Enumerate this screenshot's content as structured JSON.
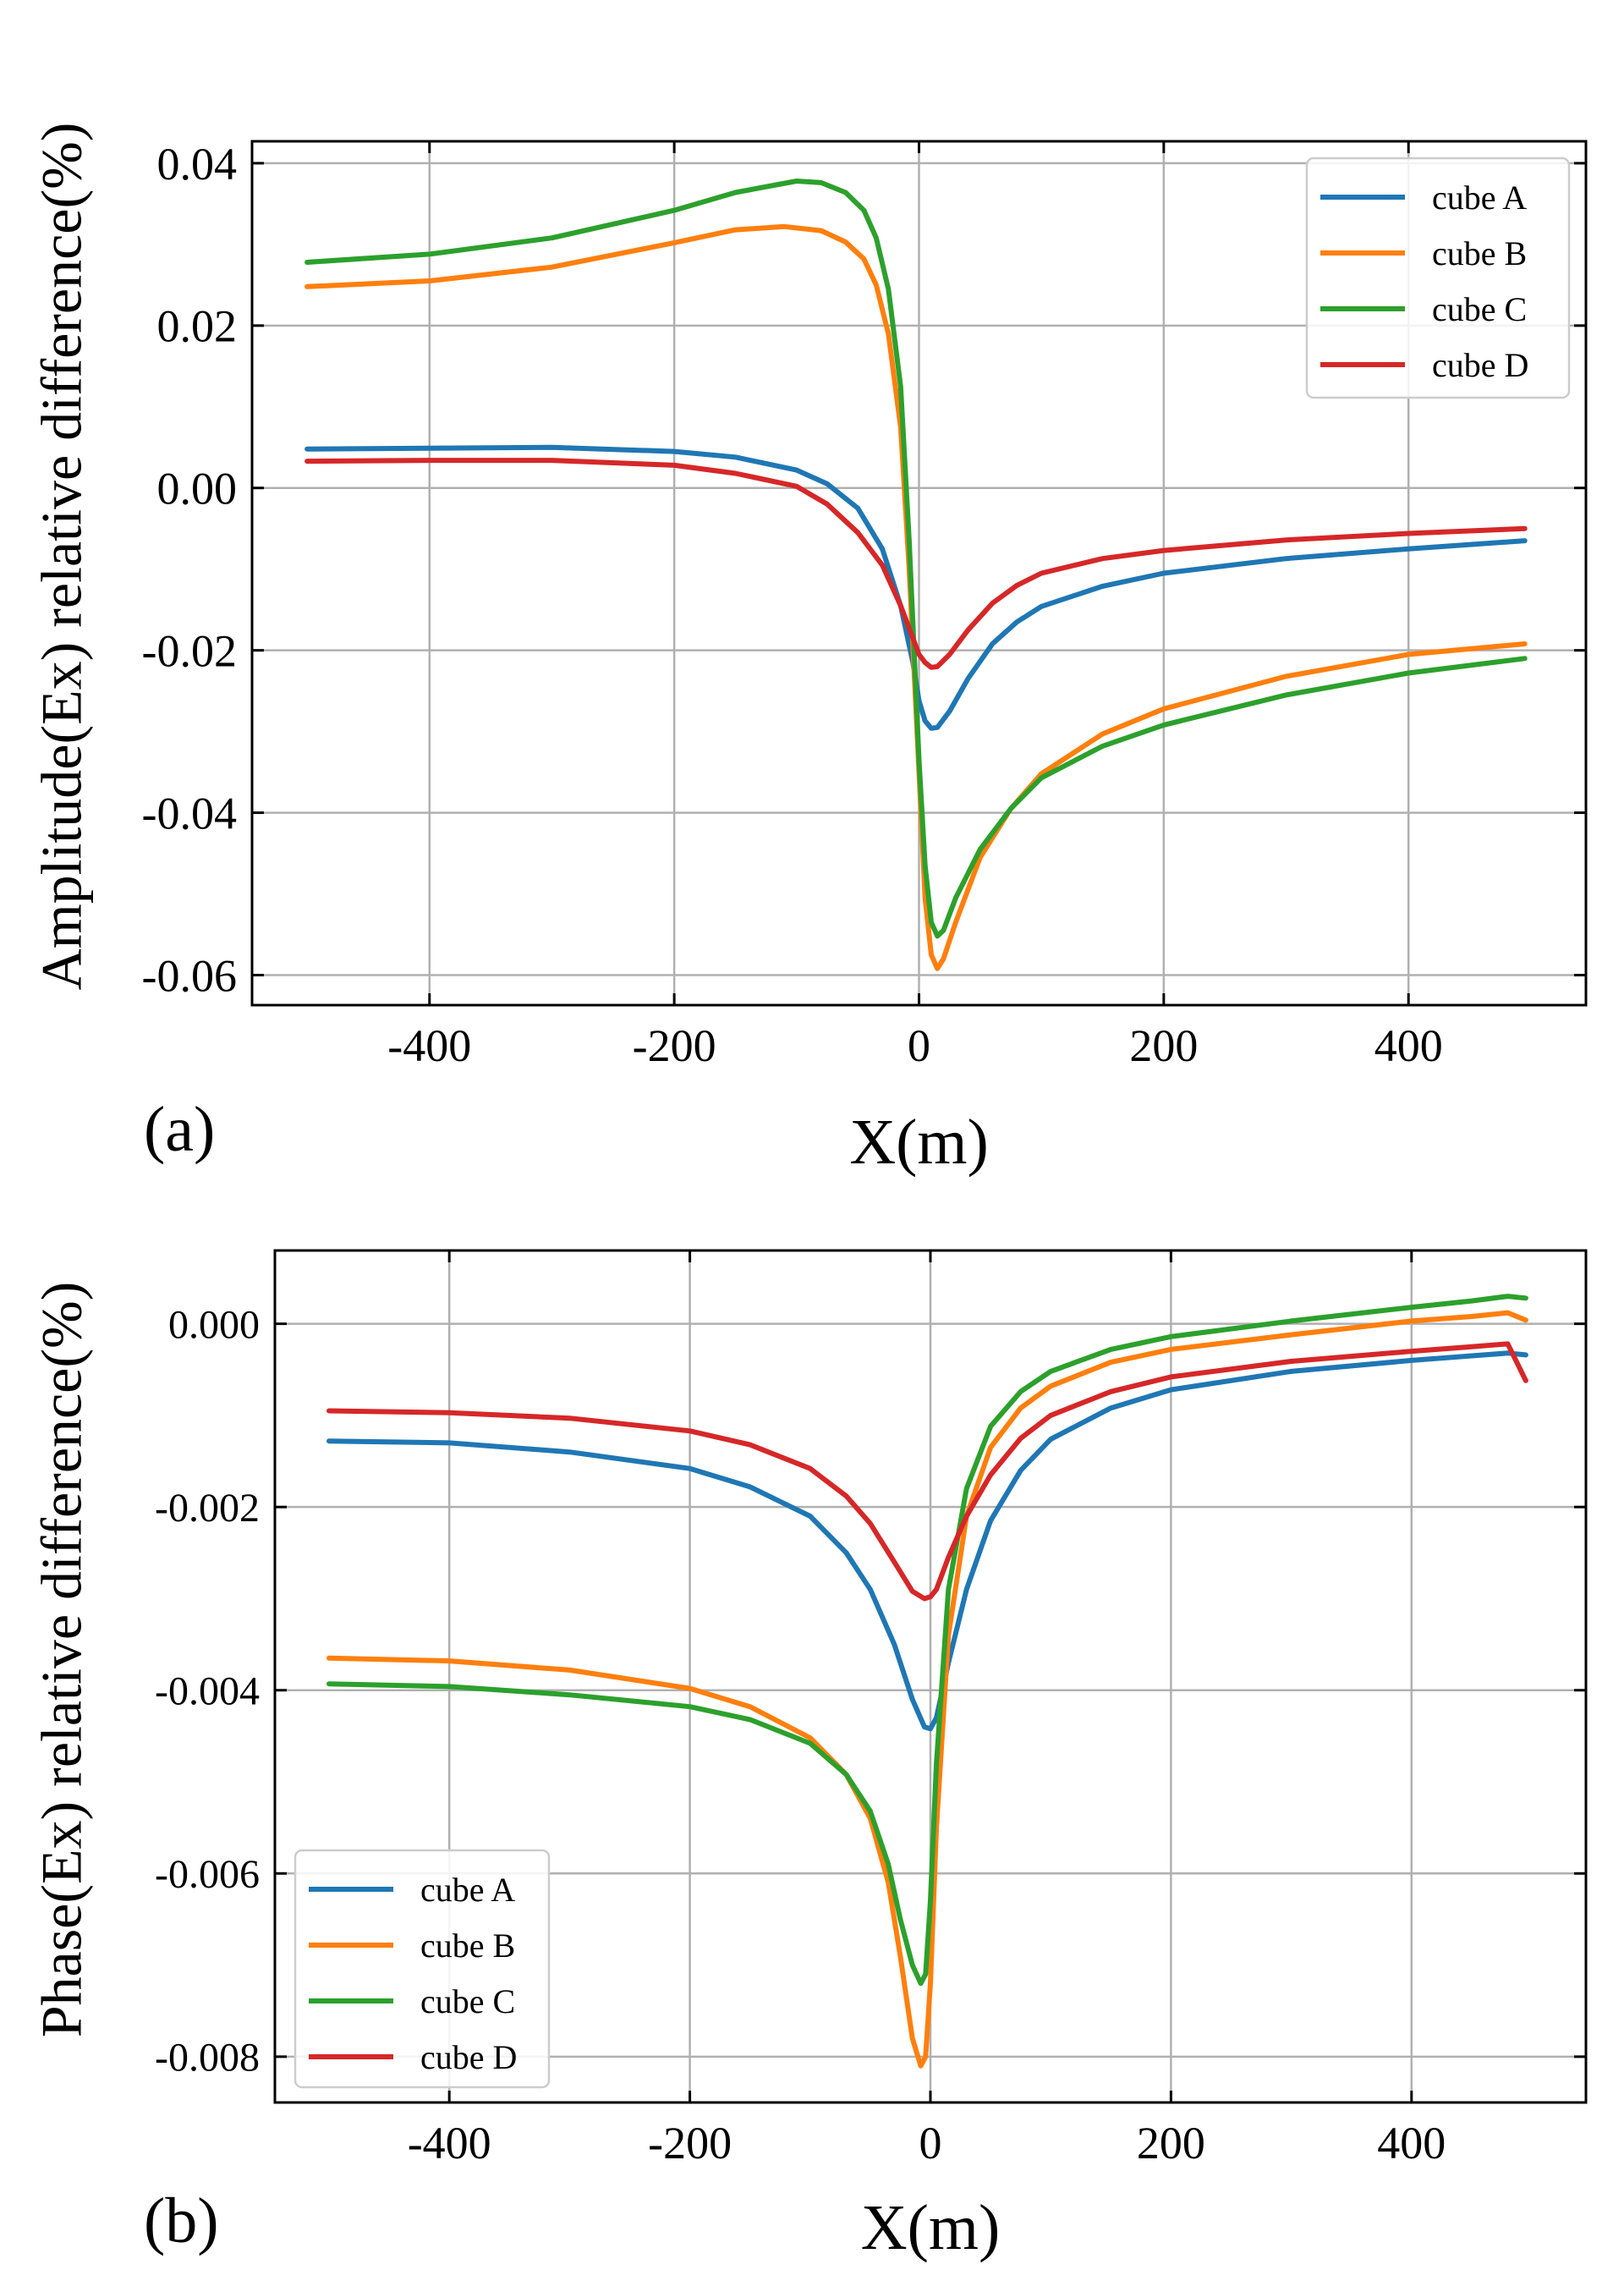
{
  "chart_data": [
    {
      "type": "line",
      "panel_label": "(a)",
      "title": "",
      "xlabel": "X(m)",
      "ylabel": "Amplitude(Ex) relative difference(%)",
      "xlim": [
        -545,
        545
      ],
      "ylim": [
        -0.0637,
        0.0427
      ],
      "xticks": [
        -400,
        -200,
        0,
        200,
        400
      ],
      "xtick_labels": [
        "-400",
        "-200",
        "0",
        "200",
        "400"
      ],
      "yticks": [
        -0.06,
        -0.04,
        -0.02,
        0.0,
        0.02,
        0.04
      ],
      "ytick_labels": [
        "-0.06",
        "-0.04",
        "-0.02",
        "0.00",
        "0.02",
        "0.04"
      ],
      "grid": true,
      "legend_position": "top-right",
      "series": [
        {
          "name": "cube A",
          "color": "#1f77b4",
          "x": [
            -500,
            -400,
            -300,
            -200,
            -150,
            -100,
            -75,
            -50,
            -30,
            -15,
            -5,
            0,
            5,
            10,
            15,
            25,
            40,
            60,
            80,
            100,
            150,
            200,
            300,
            400,
            495
          ],
          "y": [
            0.0048,
            0.0049,
            0.005,
            0.0045,
            0.0038,
            0.0022,
            0.0005,
            -0.0025,
            -0.0075,
            -0.0145,
            -0.0215,
            -0.0262,
            -0.0287,
            -0.0296,
            -0.0295,
            -0.0275,
            -0.0235,
            -0.0192,
            -0.0165,
            -0.0146,
            -0.0121,
            -0.0105,
            -0.0087,
            -0.0075,
            -0.0065
          ]
        },
        {
          "name": "cube B",
          "color": "#ff7f0e",
          "x": [
            -500,
            -400,
            -300,
            -200,
            -150,
            -110,
            -80,
            -60,
            -45,
            -35,
            -25,
            -15,
            -8,
            0,
            5,
            10,
            15,
            20,
            30,
            50,
            75,
            100,
            150,
            200,
            300,
            400,
            495
          ],
          "y": [
            0.0248,
            0.0255,
            0.0272,
            0.0302,
            0.0318,
            0.0322,
            0.0317,
            0.0303,
            0.0282,
            0.025,
            0.019,
            0.0075,
            -0.01,
            -0.035,
            -0.0505,
            -0.0575,
            -0.0592,
            -0.058,
            -0.0535,
            -0.0455,
            -0.0395,
            -0.0352,
            -0.0303,
            -0.0272,
            -0.0232,
            -0.0205,
            -0.0192
          ]
        },
        {
          "name": "cube C",
          "color": "#2ca02c",
          "x": [
            -500,
            -400,
            -300,
            -200,
            -150,
            -100,
            -80,
            -60,
            -45,
            -35,
            -25,
            -15,
            -8,
            0,
            5,
            10,
            15,
            20,
            30,
            50,
            75,
            100,
            150,
            200,
            300,
            400,
            495
          ],
          "y": [
            0.0278,
            0.0288,
            0.0308,
            0.0342,
            0.0364,
            0.0378,
            0.0376,
            0.0364,
            0.0342,
            0.0308,
            0.0245,
            0.0125,
            -0.0065,
            -0.0335,
            -0.0465,
            -0.0535,
            -0.0552,
            -0.0545,
            -0.0505,
            -0.0445,
            -0.0395,
            -0.0357,
            -0.0318,
            -0.0292,
            -0.0255,
            -0.0228,
            -0.021
          ]
        },
        {
          "name": "cube D",
          "color": "#d62728",
          "x": [
            -500,
            -400,
            -300,
            -200,
            -150,
            -100,
            -75,
            -50,
            -30,
            -15,
            -5,
            0,
            5,
            10,
            15,
            25,
            40,
            60,
            80,
            100,
            150,
            200,
            300,
            400,
            495
          ],
          "y": [
            0.0033,
            0.0034,
            0.0034,
            0.0028,
            0.0018,
            0.0002,
            -0.002,
            -0.0055,
            -0.0095,
            -0.0145,
            -0.0185,
            -0.0205,
            -0.0215,
            -0.0221,
            -0.022,
            -0.0205,
            -0.0175,
            -0.0142,
            -0.012,
            -0.0105,
            -0.0087,
            -0.0077,
            -0.0064,
            -0.0056,
            -0.005
          ]
        }
      ]
    },
    {
      "type": "line",
      "panel_label": "(b)",
      "title": "",
      "xlabel": "X(m)",
      "ylabel": "Phase(Ex) relative difference(%)",
      "xlim": [
        -545,
        545
      ],
      "ylim": [
        -0.0085,
        0.0008
      ],
      "xticks": [
        -400,
        -200,
        0,
        200,
        400
      ],
      "xtick_labels": [
        "-400",
        "-200",
        "0",
        "200",
        "400"
      ],
      "yticks": [
        -0.008,
        -0.006,
        -0.004,
        -0.002,
        0.0
      ],
      "ytick_labels": [
        "-0.008",
        "-0.006",
        "-0.004",
        "-0.002",
        "0.000"
      ],
      "grid": true,
      "legend_position": "bottom-left",
      "series": [
        {
          "name": "cube A",
          "color": "#1f77b4",
          "x": [
            -500,
            -400,
            -300,
            -200,
            -150,
            -100,
            -70,
            -50,
            -30,
            -15,
            -5,
            0,
            5,
            15,
            30,
            50,
            75,
            100,
            150,
            200,
            300,
            400,
            450,
            480,
            495
          ],
          "y": [
            -0.00128,
            -0.0013,
            -0.0014,
            -0.00158,
            -0.00178,
            -0.0021,
            -0.0025,
            -0.0029,
            -0.0035,
            -0.0041,
            -0.0044,
            -0.00442,
            -0.0043,
            -0.0037,
            -0.0029,
            -0.00215,
            -0.0016,
            -0.00126,
            -0.00092,
            -0.00072,
            -0.00052,
            -0.0004,
            -0.00035,
            -0.00032,
            -0.00034
          ]
        },
        {
          "name": "cube B",
          "color": "#ff7f0e",
          "x": [
            -500,
            -400,
            -300,
            -200,
            -150,
            -100,
            -70,
            -50,
            -35,
            -25,
            -15,
            -8,
            -4,
            0,
            5,
            15,
            30,
            50,
            75,
            100,
            150,
            200,
            300,
            400,
            450,
            480,
            495
          ],
          "y": [
            -0.00365,
            -0.00368,
            -0.00378,
            -0.00398,
            -0.00418,
            -0.00452,
            -0.00492,
            -0.0054,
            -0.0061,
            -0.0069,
            -0.0078,
            -0.0081,
            -0.008,
            -0.0072,
            -0.0055,
            -0.0034,
            -0.0021,
            -0.00135,
            -0.00092,
            -0.00068,
            -0.00042,
            -0.00028,
            -0.00012,
            3e-05,
            8e-05,
            0.00012,
            4e-05
          ]
        },
        {
          "name": "cube C",
          "color": "#2ca02c",
          "x": [
            -500,
            -400,
            -300,
            -200,
            -150,
            -100,
            -70,
            -50,
            -35,
            -25,
            -15,
            -8,
            -4,
            0,
            5,
            15,
            30,
            50,
            75,
            100,
            150,
            200,
            300,
            400,
            450,
            480,
            495
          ],
          "y": [
            -0.00393,
            -0.00396,
            -0.00405,
            -0.00418,
            -0.00432,
            -0.00458,
            -0.00492,
            -0.00532,
            -0.0059,
            -0.0065,
            -0.007,
            -0.0072,
            -0.0071,
            -0.0063,
            -0.0048,
            -0.0029,
            -0.0018,
            -0.00112,
            -0.00074,
            -0.00052,
            -0.00028,
            -0.00014,
            3e-05,
            0.00018,
            0.00025,
            0.0003,
            0.00028
          ]
        },
        {
          "name": "cube D",
          "color": "#d62728",
          "x": [
            -500,
            -400,
            -300,
            -200,
            -150,
            -100,
            -70,
            -50,
            -30,
            -15,
            -5,
            0,
            5,
            15,
            30,
            50,
            75,
            100,
            150,
            200,
            300,
            400,
            450,
            480,
            495
          ],
          "y": [
            -0.00095,
            -0.00097,
            -0.00103,
            -0.00117,
            -0.00132,
            -0.00158,
            -0.00188,
            -0.00218,
            -0.0026,
            -0.00292,
            -0.003,
            -0.00298,
            -0.0029,
            -0.00255,
            -0.0021,
            -0.00165,
            -0.00125,
            -0.001,
            -0.00074,
            -0.00058,
            -0.00041,
            -0.0003,
            -0.00025,
            -0.00022,
            -0.00062
          ]
        }
      ]
    }
  ]
}
